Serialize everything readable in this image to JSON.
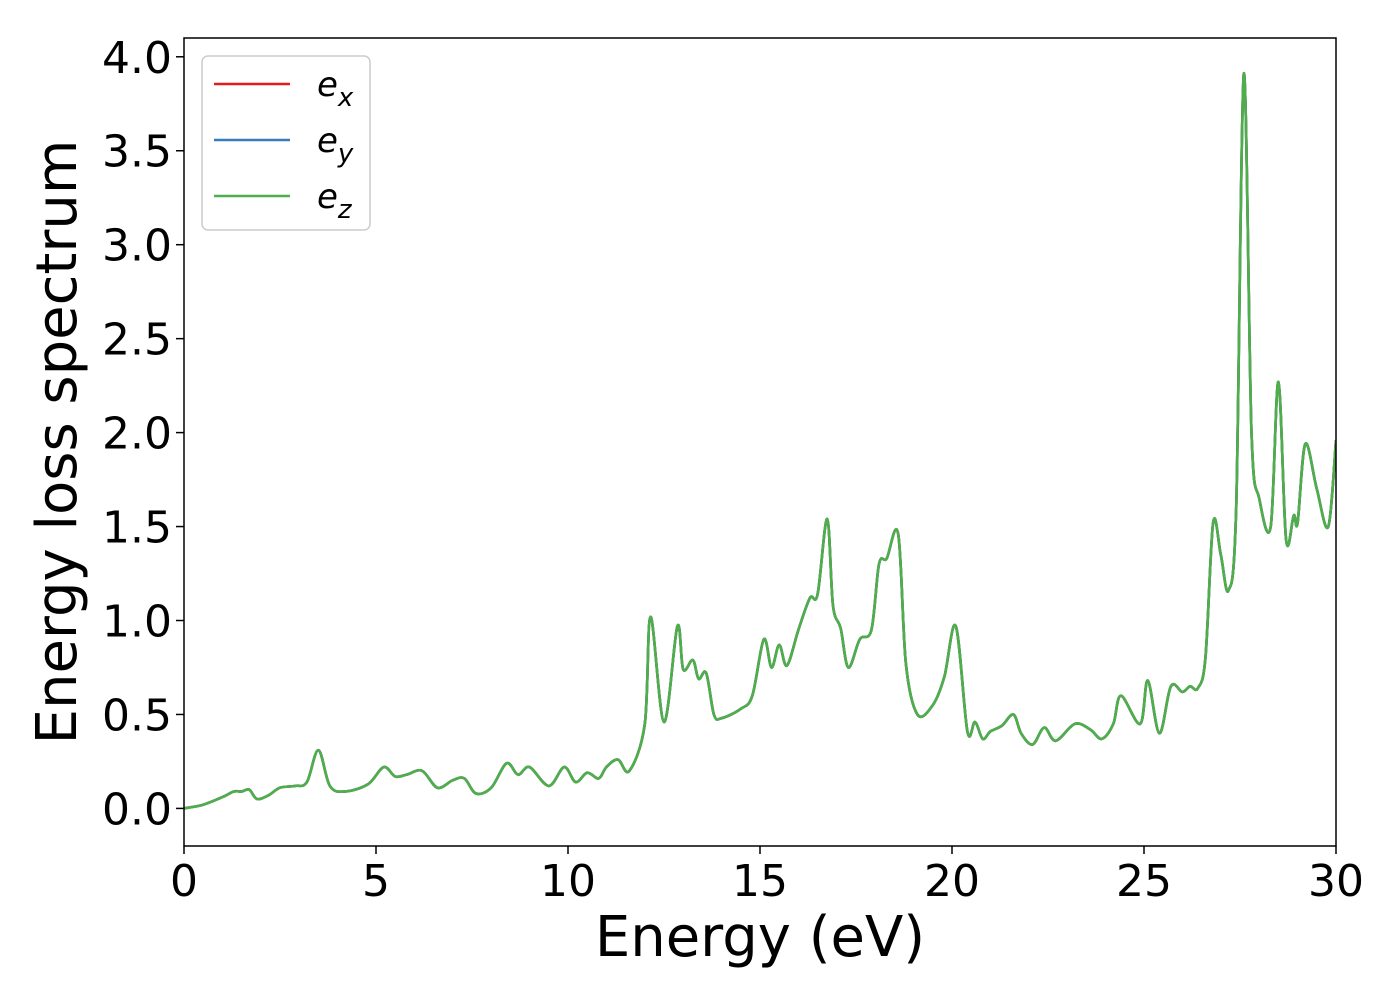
{
  "chart_data": {
    "type": "line",
    "title": "",
    "xlabel": "Energy (eV)",
    "ylabel": "Energy loss spectrum",
    "xlim": [
      0,
      30
    ],
    "ylim": [
      -0.2,
      4.1
    ],
    "xticks": [
      0,
      5,
      10,
      15,
      20,
      25,
      30
    ],
    "yticks": [
      0.0,
      0.5,
      1.0,
      1.5,
      2.0,
      2.5,
      3.0,
      3.5,
      4.0
    ],
    "xtick_labels": [
      "0",
      "5",
      "10",
      "15",
      "20",
      "25",
      "30"
    ],
    "ytick_labels": [
      "0.0",
      "0.5",
      "1.0",
      "1.5",
      "2.0",
      "2.5",
      "3.0",
      "3.5",
      "4.0"
    ],
    "grid": false,
    "legend_position": "top-left",
    "x": [
      0,
      0.5,
      1.0,
      1.3,
      1.5,
      1.7,
      1.9,
      2.2,
      2.5,
      2.9,
      3.2,
      3.5,
      3.8,
      4.2,
      4.8,
      5.2,
      5.5,
      5.8,
      6.2,
      6.6,
      7.0,
      7.3,
      7.6,
      8.0,
      8.4,
      8.7,
      9.0,
      9.5,
      9.9,
      10.2,
      10.5,
      10.8,
      11.0,
      11.3,
      11.6,
      12.0,
      12.15,
      12.5,
      12.85,
      13.0,
      13.25,
      13.4,
      13.6,
      13.8,
      14.0,
      14.5,
      14.8,
      15.1,
      15.3,
      15.5,
      15.7,
      16.0,
      16.3,
      16.5,
      16.75,
      16.9,
      17.1,
      17.3,
      17.6,
      17.9,
      18.1,
      18.3,
      18.6,
      18.8,
      19.1,
      19.5,
      19.8,
      20.1,
      20.4,
      20.6,
      20.8,
      21.0,
      21.3,
      21.6,
      21.8,
      22.1,
      22.4,
      22.7,
      23.2,
      23.6,
      23.9,
      24.2,
      24.4,
      24.9,
      25.1,
      25.4,
      25.7,
      26.0,
      26.2,
      26.4,
      26.6,
      26.8,
      27.0,
      27.2,
      27.4,
      27.6,
      27.8,
      28.0,
      28.3,
      28.5,
      28.7,
      28.9,
      29.0,
      29.2,
      29.5,
      29.8,
      30.0
    ],
    "series": [
      {
        "name": "e_x",
        "color": "#e41a1c",
        "values": [
          0.0,
          0.02,
          0.06,
          0.09,
          0.09,
          0.1,
          0.05,
          0.07,
          0.11,
          0.12,
          0.14,
          0.31,
          0.12,
          0.09,
          0.13,
          0.22,
          0.17,
          0.18,
          0.2,
          0.11,
          0.15,
          0.16,
          0.08,
          0.11,
          0.24,
          0.18,
          0.22,
          0.12,
          0.22,
          0.14,
          0.19,
          0.16,
          0.22,
          0.26,
          0.2,
          0.45,
          1.02,
          0.46,
          0.97,
          0.74,
          0.79,
          0.69,
          0.72,
          0.5,
          0.48,
          0.53,
          0.6,
          0.9,
          0.75,
          0.87,
          0.76,
          0.95,
          1.12,
          1.14,
          1.54,
          1.08,
          0.96,
          0.75,
          0.9,
          0.95,
          1.3,
          1.33,
          1.46,
          0.77,
          0.5,
          0.55,
          0.7,
          0.97,
          0.41,
          0.46,
          0.37,
          0.41,
          0.44,
          0.5,
          0.4,
          0.34,
          0.43,
          0.36,
          0.45,
          0.42,
          0.37,
          0.45,
          0.6,
          0.45,
          0.68,
          0.4,
          0.65,
          0.62,
          0.65,
          0.64,
          0.8,
          1.52,
          1.35,
          1.16,
          1.6,
          3.91,
          2.0,
          1.65,
          1.5,
          2.27,
          1.43,
          1.56,
          1.52,
          1.94,
          1.7,
          1.5,
          1.96
        ]
      },
      {
        "name": "e_y",
        "color": "#377eb8",
        "values": [
          0.0,
          0.02,
          0.06,
          0.09,
          0.09,
          0.1,
          0.05,
          0.07,
          0.11,
          0.12,
          0.14,
          0.31,
          0.12,
          0.09,
          0.13,
          0.22,
          0.17,
          0.18,
          0.2,
          0.11,
          0.15,
          0.16,
          0.08,
          0.11,
          0.24,
          0.18,
          0.22,
          0.12,
          0.22,
          0.14,
          0.19,
          0.16,
          0.22,
          0.26,
          0.2,
          0.45,
          1.02,
          0.46,
          0.97,
          0.74,
          0.79,
          0.69,
          0.72,
          0.5,
          0.48,
          0.53,
          0.6,
          0.9,
          0.75,
          0.87,
          0.76,
          0.95,
          1.12,
          1.14,
          1.54,
          1.08,
          0.96,
          0.75,
          0.9,
          0.95,
          1.3,
          1.33,
          1.46,
          0.77,
          0.5,
          0.55,
          0.7,
          0.97,
          0.41,
          0.46,
          0.37,
          0.41,
          0.44,
          0.5,
          0.4,
          0.34,
          0.43,
          0.36,
          0.45,
          0.42,
          0.37,
          0.45,
          0.6,
          0.45,
          0.68,
          0.4,
          0.65,
          0.62,
          0.65,
          0.64,
          0.8,
          1.52,
          1.35,
          1.16,
          1.6,
          3.91,
          2.0,
          1.65,
          1.5,
          2.27,
          1.43,
          1.56,
          1.52,
          1.94,
          1.7,
          1.5,
          1.96
        ]
      },
      {
        "name": "e_z",
        "color": "#4daf4a",
        "values": [
          0.0,
          0.02,
          0.06,
          0.09,
          0.09,
          0.1,
          0.05,
          0.07,
          0.11,
          0.12,
          0.14,
          0.31,
          0.12,
          0.09,
          0.13,
          0.22,
          0.17,
          0.18,
          0.2,
          0.11,
          0.15,
          0.16,
          0.08,
          0.11,
          0.24,
          0.18,
          0.22,
          0.12,
          0.22,
          0.14,
          0.19,
          0.16,
          0.22,
          0.26,
          0.2,
          0.45,
          1.02,
          0.46,
          0.97,
          0.74,
          0.79,
          0.69,
          0.72,
          0.5,
          0.48,
          0.53,
          0.6,
          0.9,
          0.75,
          0.87,
          0.76,
          0.95,
          1.12,
          1.14,
          1.54,
          1.08,
          0.96,
          0.75,
          0.9,
          0.95,
          1.3,
          1.33,
          1.46,
          0.77,
          0.5,
          0.55,
          0.7,
          0.97,
          0.41,
          0.46,
          0.37,
          0.41,
          0.44,
          0.5,
          0.4,
          0.34,
          0.43,
          0.36,
          0.45,
          0.42,
          0.37,
          0.45,
          0.6,
          0.45,
          0.68,
          0.4,
          0.65,
          0.62,
          0.65,
          0.64,
          0.8,
          1.52,
          1.35,
          1.16,
          1.6,
          3.91,
          2.0,
          1.65,
          1.5,
          2.27,
          1.43,
          1.56,
          1.52,
          1.94,
          1.7,
          1.5,
          1.96
        ]
      }
    ],
    "legend": [
      {
        "base": "e",
        "sub": "x",
        "color": "#e41a1c"
      },
      {
        "base": "e",
        "sub": "y",
        "color": "#377eb8"
      },
      {
        "base": "e",
        "sub": "z",
        "color": "#4daf4a"
      }
    ]
  }
}
